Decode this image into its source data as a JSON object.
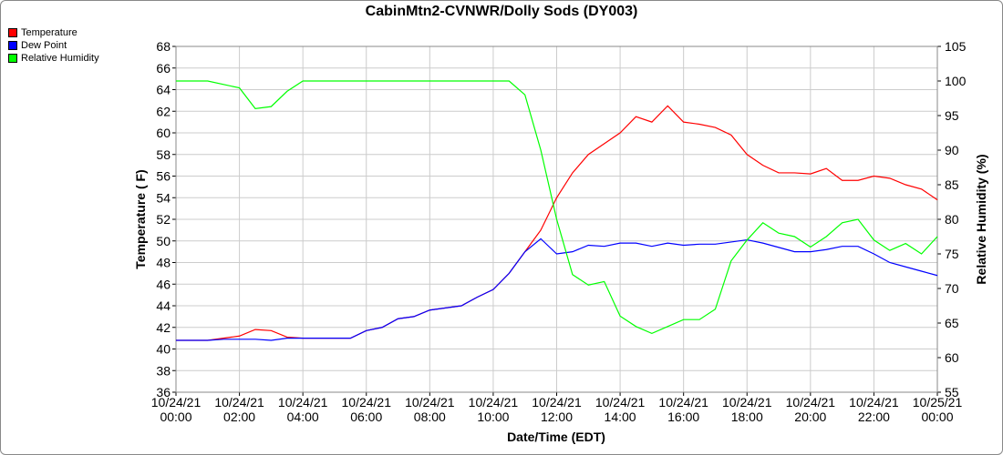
{
  "chart_data": {
    "type": "line",
    "title": "CabinMtn2-CVNWR/Dolly Sods (DY003)",
    "x_label": "Date/Time (EDT)",
    "y_label": "Temperature ( F)",
    "y2_label": "Relative Humidity (%)",
    "x": [
      0,
      0.5,
      1,
      1.5,
      2,
      2.5,
      3,
      3.5,
      4,
      4.5,
      5,
      5.5,
      6,
      6.5,
      7,
      7.5,
      8,
      8.5,
      9,
      9.5,
      10,
      10.5,
      11,
      11.5,
      12,
      12.5,
      13,
      13.5,
      14,
      14.5,
      15,
      15.5,
      16,
      16.5,
      17,
      17.5,
      18,
      18.5,
      19,
      19.5,
      20,
      20.5,
      21,
      21.5,
      22,
      22.5,
      23,
      23.5,
      24
    ],
    "xlim": [
      0,
      24
    ],
    "xticks": [
      {
        "value": 0,
        "label": "10/24/21 00:00"
      },
      {
        "value": 2,
        "label": "10/24/21 02:00"
      },
      {
        "value": 4,
        "label": "10/24/21 04:00"
      },
      {
        "value": 6,
        "label": "10/24/21 06:00"
      },
      {
        "value": 8,
        "label": "10/24/21 08:00"
      },
      {
        "value": 10,
        "label": "10/24/21 10:00"
      },
      {
        "value": 12,
        "label": "10/24/21 12:00"
      },
      {
        "value": 14,
        "label": "10/24/21 14:00"
      },
      {
        "value": 16,
        "label": "10/24/21 16:00"
      },
      {
        "value": 18,
        "label": "10/24/21 18:00"
      },
      {
        "value": 20,
        "label": "10/24/21 20:00"
      },
      {
        "value": 22,
        "label": "10/24/21 22:00"
      },
      {
        "value": 24,
        "label": "10/25/21 00:00"
      }
    ],
    "ylim": [
      36,
      68
    ],
    "yticks": [
      36,
      38,
      40,
      42,
      44,
      46,
      48,
      50,
      52,
      54,
      56,
      58,
      60,
      62,
      64,
      66,
      68
    ],
    "y2lim": [
      55,
      105
    ],
    "y2ticks": [
      55,
      60,
      65,
      70,
      75,
      80,
      85,
      90,
      95,
      100,
      105
    ],
    "grid": true,
    "series": [
      {
        "name": "Temperature",
        "color": "#ff0000",
        "values": [
          40.8,
          40.8,
          40.8,
          41.0,
          41.2,
          41.8,
          41.7,
          41.1,
          41.0,
          41.0,
          41.0,
          41.0,
          41.7,
          42.0,
          42.8,
          43.0,
          43.6,
          43.8,
          44.0,
          44.8,
          45.5,
          47.0,
          49.0,
          51.0,
          54.0,
          56.3,
          58.0,
          59.0,
          60.0,
          61.5,
          61.0,
          62.5,
          61.0,
          60.8,
          60.5,
          59.8,
          58.0,
          57.0,
          56.3,
          56.3,
          56.2,
          56.7,
          55.6,
          55.6,
          56.0,
          55.8,
          55.2,
          54.8,
          53.8
        ]
      },
      {
        "name": "Dew Point",
        "color": "#0000ff",
        "values": [
          40.8,
          40.8,
          40.8,
          40.9,
          40.9,
          40.9,
          40.8,
          41.0,
          41.0,
          41.0,
          41.0,
          41.0,
          41.7,
          42.0,
          42.8,
          43.0,
          43.6,
          43.8,
          44.0,
          44.8,
          45.5,
          47.0,
          49.0,
          50.2,
          48.8,
          49.0,
          49.6,
          49.5,
          49.8,
          49.8,
          49.5,
          49.8,
          49.6,
          49.7,
          49.7,
          49.9,
          50.1,
          49.8,
          49.4,
          49.0,
          49.0,
          49.2,
          49.5,
          49.5,
          48.8,
          48.0,
          47.6,
          47.2,
          46.8
        ]
      },
      {
        "name": "Relative Humidity",
        "color": "#00ff00",
        "axis": "y2",
        "values": [
          100,
          100,
          100,
          99.5,
          99,
          96,
          96.3,
          98.5,
          100,
          100,
          100,
          100,
          100,
          100,
          100,
          100,
          100,
          100,
          100,
          100,
          100,
          100,
          98,
          90,
          80,
          72,
          70.5,
          71,
          66,
          64.5,
          63.5,
          64.5,
          65.5,
          65.5,
          67,
          74,
          77,
          79.5,
          78,
          77.5,
          76,
          77.5,
          79.5,
          80,
          77,
          75.5,
          76.5,
          75,
          77.5
        ]
      }
    ]
  }
}
